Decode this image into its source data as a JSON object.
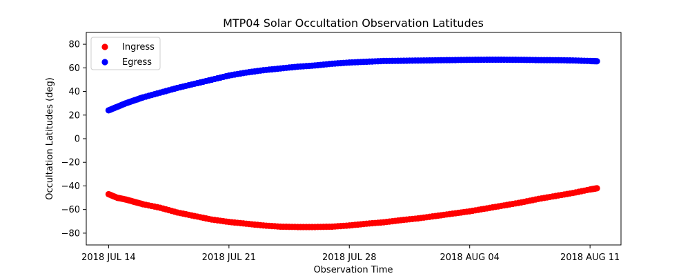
{
  "chart_data": {
    "type": "scatter",
    "title": "MTP04 Solar Occultation Observation Latitudes",
    "xlabel": "Observation Time",
    "ylabel": "Occultation Latitudes (deg)",
    "x_unit": "days since 2018 JUL 14",
    "xlim": [
      -1.3,
      29.8
    ],
    "ylim": [
      -90,
      90
    ],
    "x_ticks": [
      {
        "value": 0,
        "label": "2018 JUL 14"
      },
      {
        "value": 7,
        "label": "2018 JUL 21"
      },
      {
        "value": 14,
        "label": "2018 JUL 28"
      },
      {
        "value": 21,
        "label": "2018 AUG 04"
      },
      {
        "value": 28,
        "label": "2018 AUG 11"
      }
    ],
    "y_ticks": [
      {
        "value": 80,
        "label": "80"
      },
      {
        "value": 60,
        "label": "60"
      },
      {
        "value": 40,
        "label": "40"
      },
      {
        "value": 20,
        "label": "20"
      },
      {
        "value": 0,
        "label": "0"
      },
      {
        "value": -20,
        "label": "−20"
      },
      {
        "value": -40,
        "label": "−40"
      },
      {
        "value": -60,
        "label": "−60"
      },
      {
        "value": -80,
        "label": "−80"
      }
    ],
    "legend_position": "top-left",
    "series": [
      {
        "name": "Ingress",
        "color": "#ff0000",
        "x": [
          0,
          0.5,
          1,
          1.5,
          2,
          3,
          4,
          5,
          6,
          7,
          8,
          9,
          10,
          11,
          12,
          13,
          14,
          15,
          16,
          17,
          18,
          19,
          20,
          21,
          22,
          23,
          24,
          25,
          26,
          27,
          28,
          28.4
        ],
        "y": [
          -47,
          -50,
          -51.5,
          -53.5,
          -55.5,
          -58.5,
          -62.5,
          -65.5,
          -68.5,
          -70.5,
          -72,
          -73.5,
          -74.5,
          -74.8,
          -74.8,
          -74.5,
          -73.5,
          -72,
          -70.8,
          -69,
          -67.5,
          -65.5,
          -63.5,
          -61.5,
          -59,
          -56.5,
          -54,
          -51,
          -48.5,
          -46,
          -43,
          -42
        ]
      },
      {
        "name": "Egress",
        "color": "#0000ff",
        "x": [
          0,
          0.5,
          1,
          1.5,
          2,
          3,
          4,
          5,
          6,
          7,
          8,
          9,
          10,
          11,
          12,
          13,
          14,
          15,
          16,
          17,
          18,
          19,
          20,
          21,
          22,
          23,
          24,
          25,
          26,
          27,
          28,
          28.4
        ],
        "y": [
          24,
          27,
          30,
          32.5,
          35,
          39,
          43,
          46.5,
          50,
          53.5,
          56,
          58,
          59.5,
          61,
          62,
          63.5,
          64.5,
          65.2,
          65.8,
          66,
          66.2,
          66.4,
          66.6,
          66.8,
          66.9,
          66.9,
          66.8,
          66.6,
          66.5,
          66.3,
          65.8,
          65.6
        ]
      }
    ]
  }
}
